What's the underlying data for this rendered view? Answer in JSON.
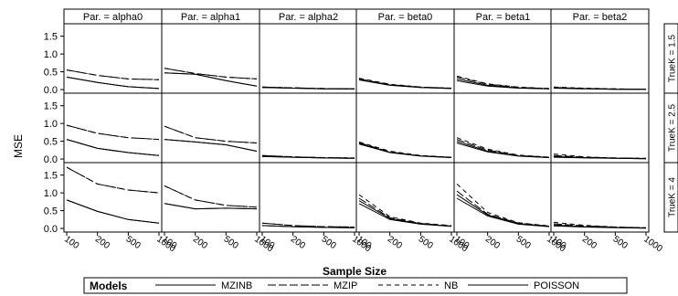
{
  "chart_data": {
    "type": "line",
    "xlabel": "Sample Size",
    "ylabel": "MSE",
    "x": [
      100,
      200,
      500,
      1000
    ],
    "x_tick_labels": [
      "100",
      "200",
      "500",
      "1000"
    ],
    "y_ticks": [
      "0.0",
      "0.5",
      "1.0",
      "1.5"
    ],
    "ylim": [
      -0.05,
      1.8
    ],
    "columns": [
      {
        "label": "Par. = alpha0"
      },
      {
        "label": "Par. = alpha1"
      },
      {
        "label": "Par. = alpha2"
      },
      {
        "label": "Par. = beta0"
      },
      {
        "label": "Par. = beta1"
      },
      {
        "label": "Par. = beta2"
      }
    ],
    "rows": [
      {
        "label": "TrueK = 1.5"
      },
      {
        "label": "TrueK = 2.5"
      },
      {
        "label": "TrueK = 4"
      }
    ],
    "legend": {
      "title": "Models",
      "entries": [
        {
          "name": "MZINB",
          "dash": "solid"
        },
        {
          "name": "MZIP",
          "dash": "longdash"
        },
        {
          "name": "NB",
          "dash": "dash"
        },
        {
          "name": "POISSON",
          "dash": "solid"
        }
      ]
    },
    "panels": [
      [
        {
          "series": [
            {
              "name": "MZINB",
              "values": [
                0.35,
                0.2,
                0.08,
                0.03
              ]
            },
            {
              "name": "MZIP",
              "values": [
                0.55,
                0.4,
                0.3,
                0.28
              ]
            },
            {
              "name": "NB",
              "values": [
                0.55,
                0.4,
                0.3,
                0.28
              ]
            },
            {
              "name": "POISSON",
              "values": [
                0.35,
                0.2,
                0.08,
                0.03
              ]
            }
          ]
        },
        {
          "series": [
            {
              "name": "MZINB",
              "values": [
                0.47,
                0.43,
                0.25,
                0.1
              ]
            },
            {
              "name": "MZIP",
              "values": [
                0.6,
                0.45,
                0.35,
                0.3
              ]
            },
            {
              "name": "NB",
              "values": [
                0.6,
                0.45,
                0.35,
                0.3
              ]
            },
            {
              "name": "POISSON",
              "values": [
                0.47,
                0.43,
                0.25,
                0.1
              ]
            }
          ]
        },
        {
          "series": [
            {
              "name": "MZINB",
              "values": [
                0.06,
                0.04,
                0.02,
                0.02
              ]
            },
            {
              "name": "MZIP",
              "values": [
                0.07,
                0.05,
                0.03,
                0.02
              ]
            },
            {
              "name": "NB",
              "values": [
                0.07,
                0.05,
                0.03,
                0.02
              ]
            },
            {
              "name": "POISSON",
              "values": [
                0.06,
                0.04,
                0.02,
                0.02
              ]
            }
          ]
        },
        {
          "series": [
            {
              "name": "MZINB",
              "values": [
                0.27,
                0.12,
                0.06,
                0.03
              ]
            },
            {
              "name": "MZIP",
              "values": [
                0.3,
                0.14,
                0.07,
                0.04
              ]
            },
            {
              "name": "NB",
              "values": [
                0.32,
                0.15,
                0.07,
                0.04
              ]
            },
            {
              "name": "POISSON",
              "values": [
                0.28,
                0.13,
                0.06,
                0.03
              ]
            }
          ]
        },
        {
          "series": [
            {
              "name": "MZINB",
              "values": [
                0.25,
                0.1,
                0.04,
                0.02
              ]
            },
            {
              "name": "MZIP",
              "values": [
                0.35,
                0.15,
                0.06,
                0.03
              ]
            },
            {
              "name": "NB",
              "values": [
                0.38,
                0.16,
                0.07,
                0.03
              ]
            },
            {
              "name": "POISSON",
              "values": [
                0.3,
                0.12,
                0.05,
                0.02
              ]
            }
          ]
        },
        {
          "series": [
            {
              "name": "MZINB",
              "values": [
                0.04,
                0.02,
                0.01,
                0.01
              ]
            },
            {
              "name": "MZIP",
              "values": [
                0.06,
                0.03,
                0.02,
                0.01
              ]
            },
            {
              "name": "NB",
              "values": [
                0.07,
                0.04,
                0.02,
                0.01
              ]
            },
            {
              "name": "POISSON",
              "values": [
                0.05,
                0.03,
                0.01,
                0.01
              ]
            }
          ]
        }
      ],
      [
        {
          "series": [
            {
              "name": "MZINB",
              "values": [
                0.55,
                0.3,
                0.18,
                0.1
              ]
            },
            {
              "name": "MZIP",
              "values": [
                0.95,
                0.72,
                0.6,
                0.55
              ]
            },
            {
              "name": "NB",
              "values": [
                0.95,
                0.72,
                0.6,
                0.55
              ]
            },
            {
              "name": "POISSON",
              "values": [
                0.55,
                0.3,
                0.18,
                0.1
              ]
            }
          ]
        },
        {
          "series": [
            {
              "name": "MZINB",
              "values": [
                0.55,
                0.48,
                0.4,
                0.22
              ]
            },
            {
              "name": "MZIP",
              "values": [
                0.92,
                0.6,
                0.5,
                0.45
              ]
            },
            {
              "name": "NB",
              "values": [
                0.92,
                0.6,
                0.5,
                0.45
              ]
            },
            {
              "name": "POISSON",
              "values": [
                0.55,
                0.48,
                0.4,
                0.22
              ]
            }
          ]
        },
        {
          "series": [
            {
              "name": "MZINB",
              "values": [
                0.07,
                0.05,
                0.03,
                0.02
              ]
            },
            {
              "name": "MZIP",
              "values": [
                0.1,
                0.06,
                0.04,
                0.03
              ]
            },
            {
              "name": "NB",
              "values": [
                0.1,
                0.06,
                0.04,
                0.03
              ]
            },
            {
              "name": "POISSON",
              "values": [
                0.07,
                0.05,
                0.03,
                0.02
              ]
            }
          ]
        },
        {
          "series": [
            {
              "name": "MZINB",
              "values": [
                0.42,
                0.18,
                0.08,
                0.04
              ]
            },
            {
              "name": "MZIP",
              "values": [
                0.46,
                0.2,
                0.09,
                0.05
              ]
            },
            {
              "name": "NB",
              "values": [
                0.48,
                0.22,
                0.1,
                0.05
              ]
            },
            {
              "name": "POISSON",
              "values": [
                0.44,
                0.19,
                0.09,
                0.04
              ]
            }
          ]
        },
        {
          "series": [
            {
              "name": "MZINB",
              "values": [
                0.45,
                0.2,
                0.08,
                0.04
              ]
            },
            {
              "name": "MZIP",
              "values": [
                0.55,
                0.25,
                0.1,
                0.05
              ]
            },
            {
              "name": "NB",
              "values": [
                0.6,
                0.28,
                0.11,
                0.05
              ]
            },
            {
              "name": "POISSON",
              "values": [
                0.5,
                0.22,
                0.09,
                0.04
              ]
            }
          ]
        },
        {
          "series": [
            {
              "name": "MZINB",
              "values": [
                0.05,
                0.03,
                0.02,
                0.01
              ]
            },
            {
              "name": "MZIP",
              "values": [
                0.1,
                0.05,
                0.03,
                0.02
              ]
            },
            {
              "name": "NB",
              "values": [
                0.14,
                0.06,
                0.03,
                0.02
              ]
            },
            {
              "name": "POISSON",
              "values": [
                0.07,
                0.04,
                0.02,
                0.01
              ]
            }
          ]
        }
      ],
      [
        {
          "series": [
            {
              "name": "MZINB",
              "values": [
                0.8,
                0.48,
                0.25,
                0.15
              ]
            },
            {
              "name": "MZIP",
              "values": [
                1.72,
                1.25,
                1.08,
                1.0
              ]
            },
            {
              "name": "NB",
              "values": [
                1.72,
                1.25,
                1.08,
                1.0
              ]
            },
            {
              "name": "POISSON",
              "values": [
                0.8,
                0.48,
                0.25,
                0.15
              ]
            }
          ]
        },
        {
          "series": [
            {
              "name": "MZINB",
              "values": [
                0.7,
                0.55,
                0.57,
                0.55
              ]
            },
            {
              "name": "MZIP",
              "values": [
                1.2,
                0.8,
                0.65,
                0.6
              ]
            },
            {
              "name": "NB",
              "values": [
                1.2,
                0.8,
                0.65,
                0.6
              ]
            },
            {
              "name": "POISSON",
              "values": [
                0.7,
                0.55,
                0.57,
                0.55
              ]
            }
          ]
        },
        {
          "series": [
            {
              "name": "MZINB",
              "values": [
                0.08,
                0.05,
                0.03,
                0.02
              ]
            },
            {
              "name": "MZIP",
              "values": [
                0.15,
                0.08,
                0.05,
                0.04
              ]
            },
            {
              "name": "NB",
              "values": [
                0.15,
                0.08,
                0.05,
                0.04
              ]
            },
            {
              "name": "POISSON",
              "values": [
                0.08,
                0.05,
                0.03,
                0.02
              ]
            }
          ]
        },
        {
          "series": [
            {
              "name": "MZINB",
              "values": [
                0.7,
                0.25,
                0.12,
                0.06
              ]
            },
            {
              "name": "MZIP",
              "values": [
                0.85,
                0.3,
                0.14,
                0.07
              ]
            },
            {
              "name": "NB",
              "values": [
                0.95,
                0.33,
                0.15,
                0.08
              ]
            },
            {
              "name": "POISSON",
              "values": [
                0.78,
                0.28,
                0.13,
                0.06
              ]
            }
          ]
        },
        {
          "series": [
            {
              "name": "MZINB",
              "values": [
                0.85,
                0.35,
                0.12,
                0.05
              ]
            },
            {
              "name": "MZIP",
              "values": [
                1.05,
                0.4,
                0.15,
                0.06
              ]
            },
            {
              "name": "NB",
              "values": [
                1.25,
                0.45,
                0.16,
                0.07
              ]
            },
            {
              "name": "POISSON",
              "values": [
                0.95,
                0.38,
                0.14,
                0.06
              ]
            }
          ]
        },
        {
          "series": [
            {
              "name": "MZINB",
              "values": [
                0.07,
                0.04,
                0.02,
                0.01
              ]
            },
            {
              "name": "MZIP",
              "values": [
                0.13,
                0.07,
                0.04,
                0.02
              ]
            },
            {
              "name": "NB",
              "values": [
                0.17,
                0.09,
                0.04,
                0.02
              ]
            },
            {
              "name": "POISSON",
              "values": [
                0.1,
                0.05,
                0.03,
                0.01
              ]
            }
          ]
        }
      ]
    ]
  }
}
